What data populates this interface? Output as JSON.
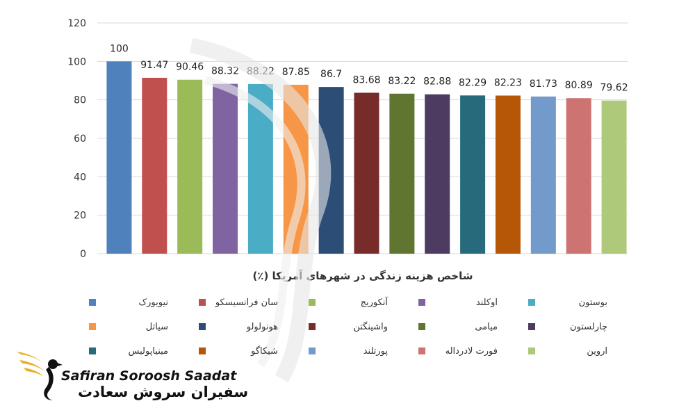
{
  "chart_data": {
    "type": "bar",
    "title": "شاخص هزینه زندگی در شهرهای آمریکا (٪)",
    "categories": [
      "نیویورک",
      "سان فرانسیسکو",
      "آنکوریج",
      "اوکلند",
      "بوستون",
      "سیاتل",
      "هونولولو",
      "واشینگتن",
      "میامی",
      "چارلستون",
      "مینیاپولیس",
      "شیکاگو",
      "پورتلند",
      "فورت لادرداله",
      "اروین"
    ],
    "values": [
      100,
      91.47,
      90.46,
      88.32,
      88.22,
      87.85,
      86.7,
      83.68,
      83.22,
      82.88,
      82.29,
      82.23,
      81.73,
      80.89,
      79.62
    ],
    "value_labels": [
      "100",
      "91.47",
      "90.46",
      "88.32",
      "88.22",
      "87.85",
      "86.7",
      "83.68",
      "83.22",
      "82.88",
      "82.29",
      "82.23",
      "81.73",
      "80.89",
      "79.62"
    ],
    "colors": [
      "#4F81BD",
      "#C0504D",
      "#9BBB59",
      "#8064A2",
      "#4BACC6",
      "#F79646",
      "#2C4D75",
      "#772C2A",
      "#5F7530",
      "#4D3B62",
      "#276A7C",
      "#B65708",
      "#729ACA",
      "#CD7371",
      "#AFC97A"
    ],
    "ylim": [
      0,
      120
    ],
    "yticks": [
      "0",
      "20",
      "40",
      "60",
      "80",
      "100",
      "120"
    ],
    "grid": true,
    "legend_position": "bottom"
  },
  "brand": {
    "name_en": "Safiran Soroosh Saadat",
    "name_fa": "سفیران سروش سعادت"
  }
}
